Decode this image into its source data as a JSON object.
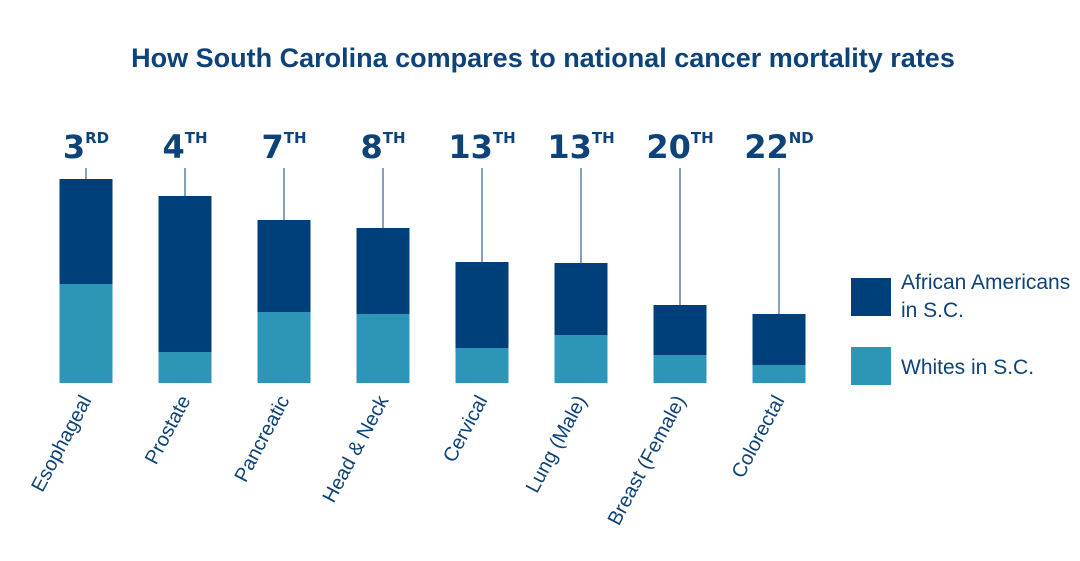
{
  "chart_data": {
    "type": "bar",
    "stacked": true,
    "title": "How South Carolina compares to national cancer mortality rates",
    "categories": [
      "Esophageal",
      "Prostate",
      "Pancreatic",
      "Head & Neck",
      "Cervical",
      "Lung (Male)",
      "Breast (Female)",
      "Colorectal"
    ],
    "ranks": [
      {
        "num": "3",
        "suffix": "RD"
      },
      {
        "num": "4",
        "suffix": "TH"
      },
      {
        "num": "7",
        "suffix": "TH"
      },
      {
        "num": "8",
        "suffix": "TH"
      },
      {
        "num": "13",
        "suffix": "TH"
      },
      {
        "num": "13",
        "suffix": "TH"
      },
      {
        "num": "20",
        "suffix": "TH"
      },
      {
        "num": "22",
        "suffix": "ND"
      }
    ],
    "series": [
      {
        "name": "Whites in S.C.",
        "color": "#2d96b8",
        "values": [
          99,
          31,
          71,
          69,
          35,
          48,
          28,
          18
        ]
      },
      {
        "name": "African Americans in S.C.",
        "color": "#00407a",
        "values": [
          105,
          156,
          92,
          86,
          86,
          72,
          50,
          51
        ]
      }
    ],
    "legend": {
      "placement": "right",
      "items": [
        {
          "label_lines": [
            "African Americans",
            "in S.C."
          ],
          "color": "#00407a"
        },
        {
          "label_lines": [
            "Whites in S.C."
          ],
          "color": "#2d96b8"
        }
      ]
    },
    "ylim": [
      0,
      215
    ],
    "grid": false,
    "colors": {
      "title": "#0d4378",
      "text": "#0d4378",
      "leader": "#0d4378"
    }
  }
}
